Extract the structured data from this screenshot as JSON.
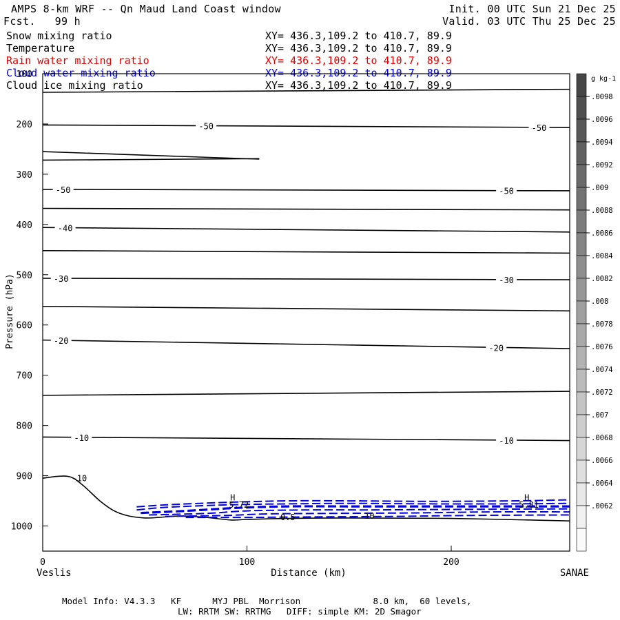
{
  "header": {
    "title": "AMPS 8-km WRF -- Qn Maud Land Coast window",
    "forecast": "Fcst.   99 h",
    "init": "Init. 00 UTC Sun 21 Dec 25",
    "valid": "Valid. 03 UTC Thu 25 Dec 25"
  },
  "legend": [
    {
      "label": "Snow mixing ratio",
      "xy": "XY= 436.3,109.2 to 410.7, 89.9",
      "color": "#000000"
    },
    {
      "label": "Temperature",
      "xy": "XY= 436.3,109.2 to 410.7, 89.9",
      "color": "#000000"
    },
    {
      "label": "Rain water mixing ratio",
      "xy": "XY= 436.3,109.2 to 410.7, 89.9",
      "color": "#e00000"
    },
    {
      "label": "Cloud water mixing ratio",
      "xy": "XY= 436.3,109.2 to 410.7, 89.9",
      "color": "#0000e0"
    },
    {
      "label": "Cloud ice mixing ratio",
      "xy": "XY= 436.3,109.2 to 410.7, 89.9",
      "color": "#000000"
    }
  ],
  "footer": {
    "line1": "Model Info: V4.3.3   KF      MYJ PBL  Morrison              8.0 km,  60 levels,",
    "line2": "LW: RRTM SW: RRTMG   DIFF: simple KM: 2D Smagor"
  },
  "chart_data": {
    "type": "line",
    "title": "AMPS 8-km WRF -- Qn Maud Land Coast window",
    "xlabel": "Distance (km)",
    "ylabel": "Pressure (hPa)",
    "xlim": [
      0,
      258
    ],
    "ylim": [
      1050,
      100
    ],
    "x_ticks": [
      0,
      100,
      200
    ],
    "y_ticks": [
      100,
      200,
      300,
      400,
      500,
      600,
      700,
      800,
      900,
      1000
    ],
    "x_end_labels": {
      "left": "Veslis",
      "right": "SANAE"
    },
    "isotherms": [
      {
        "points": [
          [
            0,
            137
          ],
          [
            258,
            131
          ]
        ]
      },
      {
        "points": [
          [
            0,
            202
          ],
          [
            258,
            207
          ]
        ],
        "labels": [
          {
            "x": 80,
            "text": "-50"
          },
          {
            "x": 243,
            "text": "-50"
          }
        ]
      },
      {
        "points": [
          [
            0,
            255
          ],
          [
            106,
            270
          ]
        ]
      },
      {
        "points": [
          [
            0,
            272
          ],
          [
            106,
            269
          ]
        ]
      },
      {
        "points": [
          [
            0,
            330
          ],
          [
            258,
            333
          ]
        ],
        "labels": [
          {
            "x": 10,
            "text": "-50"
          },
          {
            "x": 227,
            "text": "-50"
          }
        ]
      },
      {
        "points": [
          [
            0,
            368
          ],
          [
            258,
            371
          ]
        ]
      },
      {
        "points": [
          [
            0,
            406
          ],
          [
            258,
            415
          ]
        ],
        "labels": [
          {
            "x": 11,
            "text": "-40"
          }
        ]
      },
      {
        "points": [
          [
            0,
            452
          ],
          [
            258,
            457
          ]
        ]
      },
      {
        "points": [
          [
            0,
            507
          ],
          [
            258,
            510
          ]
        ],
        "labels": [
          {
            "x": 9,
            "text": "-30"
          },
          {
            "x": 227,
            "text": "-30"
          }
        ]
      },
      {
        "points": [
          [
            0,
            563
          ],
          [
            258,
            572
          ]
        ]
      },
      {
        "points": [
          [
            0,
            630
          ],
          [
            258,
            647
          ]
        ],
        "labels": [
          {
            "x": 9,
            "text": "-20"
          },
          {
            "x": 222,
            "text": "-20"
          }
        ]
      },
      {
        "points": [
          [
            0,
            740
          ],
          [
            258,
            732
          ]
        ]
      },
      {
        "points": [
          [
            0,
            823
          ],
          [
            258,
            830
          ]
        ],
        "labels": [
          {
            "x": 19,
            "text": "-10"
          },
          {
            "x": 227,
            "text": "-10"
          }
        ]
      }
    ],
    "terrain_pressure": {
      "x": [
        0,
        8,
        14,
        20,
        28,
        35,
        42,
        50,
        57,
        68,
        80,
        92,
        100,
        120,
        150,
        200,
        258
      ],
      "p": [
        905,
        901,
        903,
        920,
        950,
        970,
        980,
        984,
        983,
        980,
        983,
        988,
        987,
        985,
        984,
        985,
        990
      ],
      "labels": [
        {
          "x": 18,
          "text": "-10"
        }
      ]
    },
    "cloud_water_series": [
      {
        "x": [
          46,
          60,
          90,
          120,
          150,
          190,
          230,
          258
        ],
        "p": [
          962,
          958,
          953,
          950,
          950,
          951,
          950,
          948
        ]
      },
      {
        "x": [
          46,
          60,
          90,
          120,
          150,
          190,
          230,
          258
        ],
        "p": [
          968,
          963,
          958,
          956,
          955,
          956,
          956,
          955
        ]
      },
      {
        "x": [
          48,
          70,
          95,
          120,
          150,
          190,
          230,
          258
        ],
        "p": [
          974,
          970,
          964,
          961,
          961,
          961,
          961,
          961
        ]
      },
      {
        "x": [
          52,
          80,
          100,
          130,
          160,
          200,
          258
        ],
        "p": [
          978,
          975,
          970,
          968,
          968,
          967,
          966
        ]
      },
      {
        "x": [
          60,
          90,
          110,
          140,
          180,
          220,
          258
        ],
        "p": [
          981,
          979,
          976,
          975,
          974,
          972,
          972
        ]
      },
      {
        "x": [
          70,
          100,
          130,
          170,
          210,
          258
        ],
        "p": [
          983,
          983,
          982,
          981,
          979,
          978
        ]
      }
    ],
    "cloud_water_labels": [
      {
        "x": 93,
        "p": 944,
        "text": "H"
      },
      {
        "x": 96,
        "p": 958,
        "text": "5.72"
      },
      {
        "x": 237,
        "p": 944,
        "text": "H"
      },
      {
        "x": 238,
        "p": 958,
        "text": "5.81"
      },
      {
        "x": 120,
        "p": 983,
        "text": "0.5"
      },
      {
        "x": 160,
        "p": 980,
        "text": "10"
      }
    ],
    "colorbar": {
      "unit_label": "g kg-1",
      "ticks": [
        ".0098",
        ".0096",
        ".0094",
        ".0092",
        ".009",
        ".0088",
        ".0086",
        ".0084",
        ".0082",
        ".008",
        ".0078",
        ".0076",
        ".0074",
        ".0072",
        ".007",
        ".0068",
        ".0066",
        ".0064",
        ".0062"
      ]
    },
    "colors": {
      "temperature": "#000000",
      "cloud_water": "#0000e0",
      "rain_water": "#e00000",
      "frame": "#000000"
    }
  }
}
